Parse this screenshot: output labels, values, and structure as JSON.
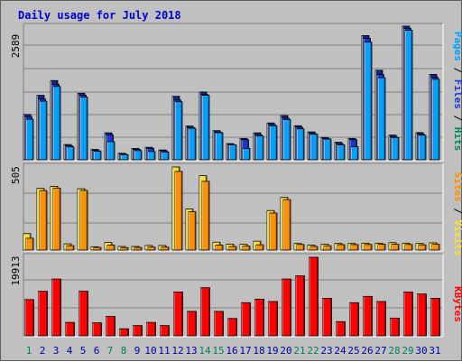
{
  "title": "Daily usage for July 2018",
  "colors": {
    "title": "#0000cc",
    "pages": "#00a0ff",
    "files": "#1e34d0",
    "hits": "#008060",
    "sites": "#ff9000",
    "visits": "#ffe030",
    "kbytes": "#ff0000",
    "weekend_day": "#00805c",
    "weekday": "#0000a0"
  },
  "chart_data": [
    {
      "type": "bar",
      "title": "Daily usage for July 2018",
      "panel": "hits-files-pages",
      "ylabel_max": "2589",
      "ymax": 2589,
      "legend": [
        "Pages",
        "Files",
        "Hits"
      ],
      "categories": [
        "1",
        "2",
        "3",
        "4",
        "5",
        "6",
        "7",
        "8",
        "9",
        "10",
        "11",
        "12",
        "13",
        "14",
        "15",
        "16",
        "17",
        "18",
        "19",
        "20",
        "21",
        "22",
        "23",
        "24",
        "25",
        "26",
        "27",
        "28",
        "29",
        "30",
        "31"
      ],
      "series": [
        {
          "name": "Hits",
          "values": [
            878,
            1249,
            1535,
            296,
            1290,
            200,
            523,
            126,
            220,
            242,
            190,
            1230,
            654,
            1314,
            565,
            314,
            413,
            522,
            714,
            857,
            660,
            540,
            433,
            340,
            414,
            2406,
            1734,
            479,
            2589,
            528,
            1655
          ]
        },
        {
          "name": "Files",
          "values": [
            836,
            1177,
            1463,
            273,
            1251,
            182,
            486,
            111,
            202,
            220,
            173,
            1157,
            624,
            1267,
            537,
            293,
            389,
            483,
            682,
            808,
            630,
            508,
            409,
            307,
            389,
            2354,
            1651,
            442,
            2546,
            496,
            1597
          ]
        },
        {
          "name": "Pages",
          "values": [
            785,
            1135,
            1420,
            251,
            1215,
            165,
            350,
            100,
            178,
            160,
            150,
            1125,
            610,
            1250,
            525,
            290,
            220,
            461,
            660,
            780,
            600,
            495,
            402,
            290,
            254,
            2280,
            1590,
            430,
            2510,
            476,
            1560
          ]
        }
      ]
    },
    {
      "type": "bar",
      "panel": "visits-sites",
      "ylabel_max": "505",
      "ymax": 505,
      "legend": [
        "Sites",
        "Visits"
      ],
      "categories": [
        "1",
        "2",
        "3",
        "4",
        "5",
        "6",
        "7",
        "8",
        "9",
        "10",
        "11",
        "12",
        "13",
        "14",
        "15",
        "16",
        "17",
        "18",
        "19",
        "20",
        "21",
        "22",
        "23",
        "24",
        "25",
        "26",
        "27",
        "28",
        "29",
        "30",
        "31"
      ],
      "series": [
        {
          "name": "Visits",
          "values": [
            100,
            375,
            387,
            38,
            373,
            20,
            46,
            22,
            22,
            28,
            28,
            505,
            250,
            452,
            48,
            36,
            35,
            54,
            240,
            320,
            40,
            30,
            35,
            40,
            40,
            42,
            42,
            45,
            42,
            40,
            44
          ]
        },
        {
          "name": "Sites",
          "values": [
            72,
            362,
            377,
            27,
            363,
            16,
            30,
            15,
            16,
            18,
            18,
            478,
            234,
            418,
            30,
            22,
            24,
            32,
            225,
            307,
            34,
            22,
            26,
            33,
            33,
            34,
            35,
            35,
            34,
            32,
            35
          ]
        }
      ]
    },
    {
      "type": "bar",
      "panel": "kbytes",
      "ylabel_max": "19913",
      "ymax": 19913,
      "legend": [
        "KBytes"
      ],
      "categories": [
        "1",
        "2",
        "3",
        "4",
        "5",
        "6",
        "7",
        "8",
        "9",
        "10",
        "11",
        "12",
        "13",
        "14",
        "15",
        "16",
        "17",
        "18",
        "19",
        "20",
        "21",
        "22",
        "23",
        "24",
        "25",
        "26",
        "27",
        "28",
        "29",
        "30",
        "31"
      ],
      "series": [
        {
          "name": "KBytes",
          "values": [
            9200,
            11300,
            14400,
            3400,
            11300,
            3300,
            4900,
            1800,
            2600,
            3400,
            2600,
            11100,
            6200,
            12200,
            6200,
            4400,
            8400,
            9300,
            8700,
            14400,
            15200,
            19913,
            9500,
            3600,
            8400,
            10000,
            8700,
            4500,
            11100,
            10600,
            9500
          ]
        }
      ]
    }
  ]
}
